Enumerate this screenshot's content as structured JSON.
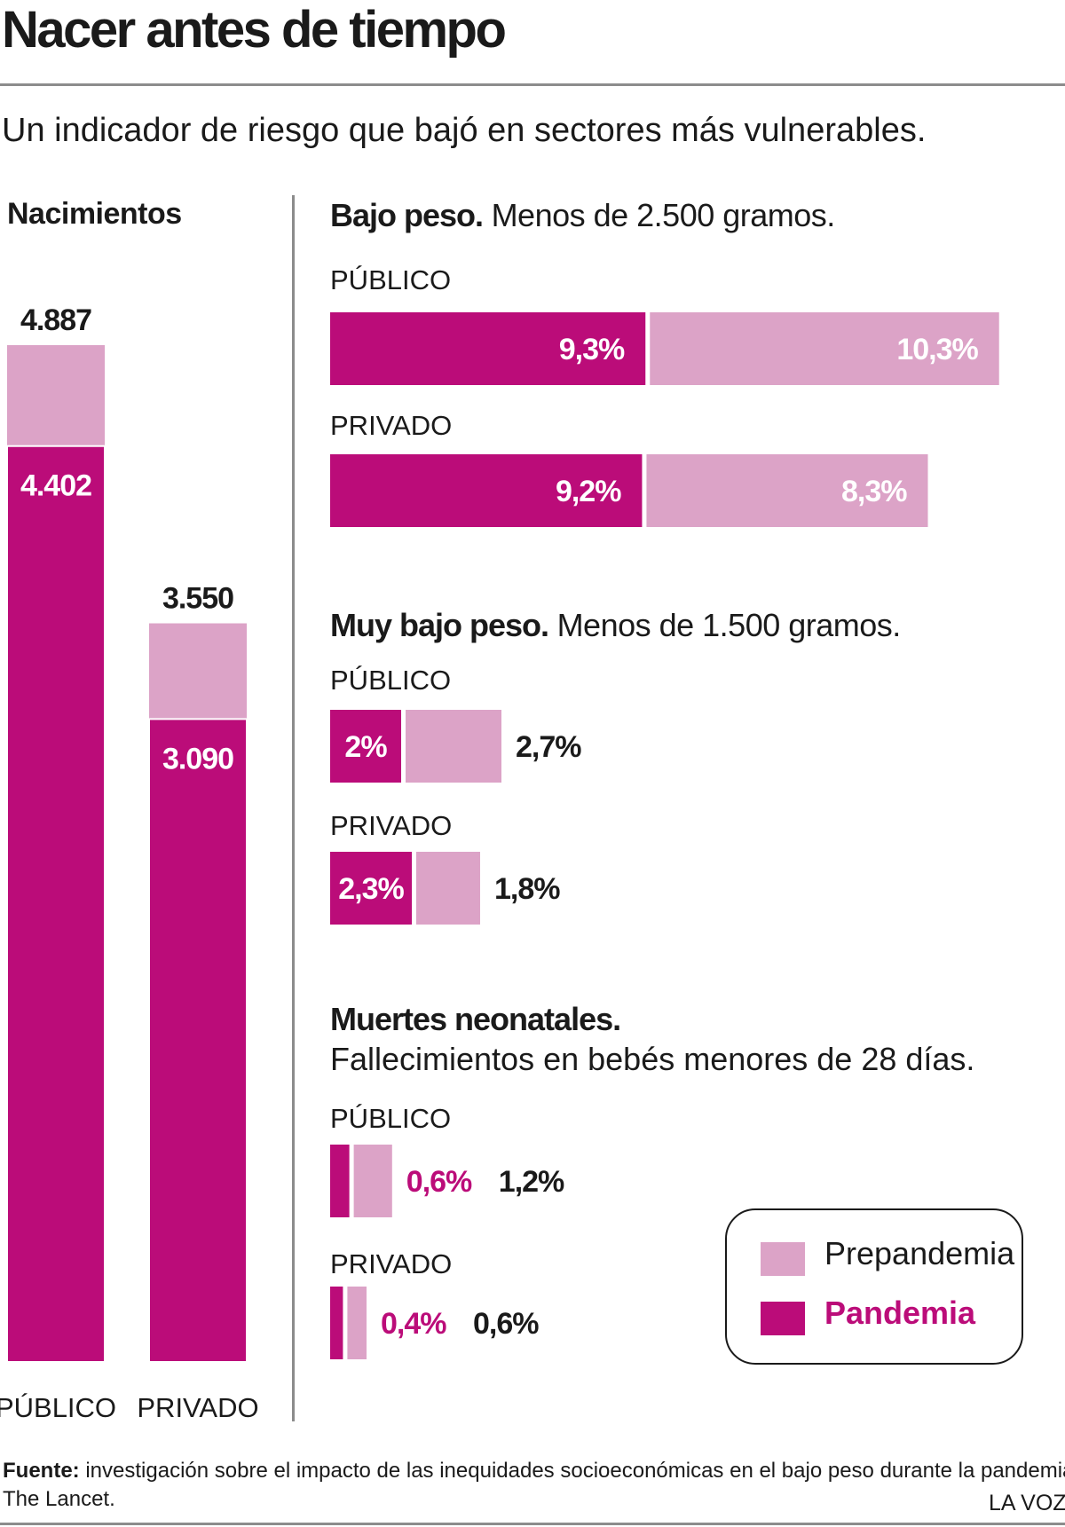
{
  "title": "Nacer antes de tiempo",
  "subtitle": "Un indicador de riesgo que bajó en sectores más vulnerables.",
  "colors": {
    "prepandemia": "#dca3c7",
    "pandemia": "#bb0c79"
  },
  "legend": {
    "prepandemia": "Prepandemia",
    "pandemia": "Pandemia"
  },
  "chart_data": [
    {
      "type": "bar",
      "title": "Nacimientos",
      "categories": [
        "PÚBLICO",
        "PRIVADO"
      ],
      "series": [
        {
          "name": "Prepandemia",
          "values": [
            4887,
            3550
          ],
          "labels": [
            "4.887",
            "3.550"
          ]
        },
        {
          "name": "Pandemia",
          "values": [
            4402,
            3090
          ],
          "labels": [
            "4.402",
            "3.090"
          ]
        }
      ]
    },
    {
      "type": "bar",
      "title": "Bajo peso.",
      "subtitle": "Menos de 2.500 gramos.",
      "categories": [
        "PÚBLICO",
        "PRIVADO"
      ],
      "series": [
        {
          "name": "Pandemia",
          "values": [
            9.3,
            9.2
          ],
          "labels": [
            "9,3%",
            "9,2%"
          ]
        },
        {
          "name": "Prepandemia",
          "values": [
            10.3,
            8.3
          ],
          "labels": [
            "10,3%",
            "8,3%"
          ]
        }
      ]
    },
    {
      "type": "bar",
      "title": "Muy bajo peso.",
      "subtitle": "Menos de 1.500 gramos.",
      "categories": [
        "PÚBLICO",
        "PRIVADO"
      ],
      "series": [
        {
          "name": "Pandemia",
          "values": [
            2.0,
            2.3
          ],
          "labels": [
            "2%",
            "2,3%"
          ]
        },
        {
          "name": "Prepandemia",
          "values": [
            2.7,
            1.8
          ],
          "labels": [
            "2,7%",
            "1,8%"
          ]
        }
      ]
    },
    {
      "type": "bar",
      "title": "Muertes neonatales.",
      "subtitle": "Fallecimientos en bebés menores de 28 días.",
      "categories": [
        "PÚBLICO",
        "PRIVADO"
      ],
      "series": [
        {
          "name": "Pandemia",
          "values": [
            0.6,
            0.4
          ],
          "labels": [
            "0,6%",
            "0,4%"
          ]
        },
        {
          "name": "Prepandemia",
          "values": [
            1.2,
            0.6
          ],
          "labels": [
            "1,2%",
            "0,6%"
          ]
        }
      ]
    }
  ],
  "footer": {
    "source_label": "Fuente:",
    "source_text": "investigación sobre el impacto de las inequidades socioeconómicas en el bajo peso durante la pandemia.",
    "source_line2": "The Lancet.",
    "brand": "LA VOZ"
  }
}
